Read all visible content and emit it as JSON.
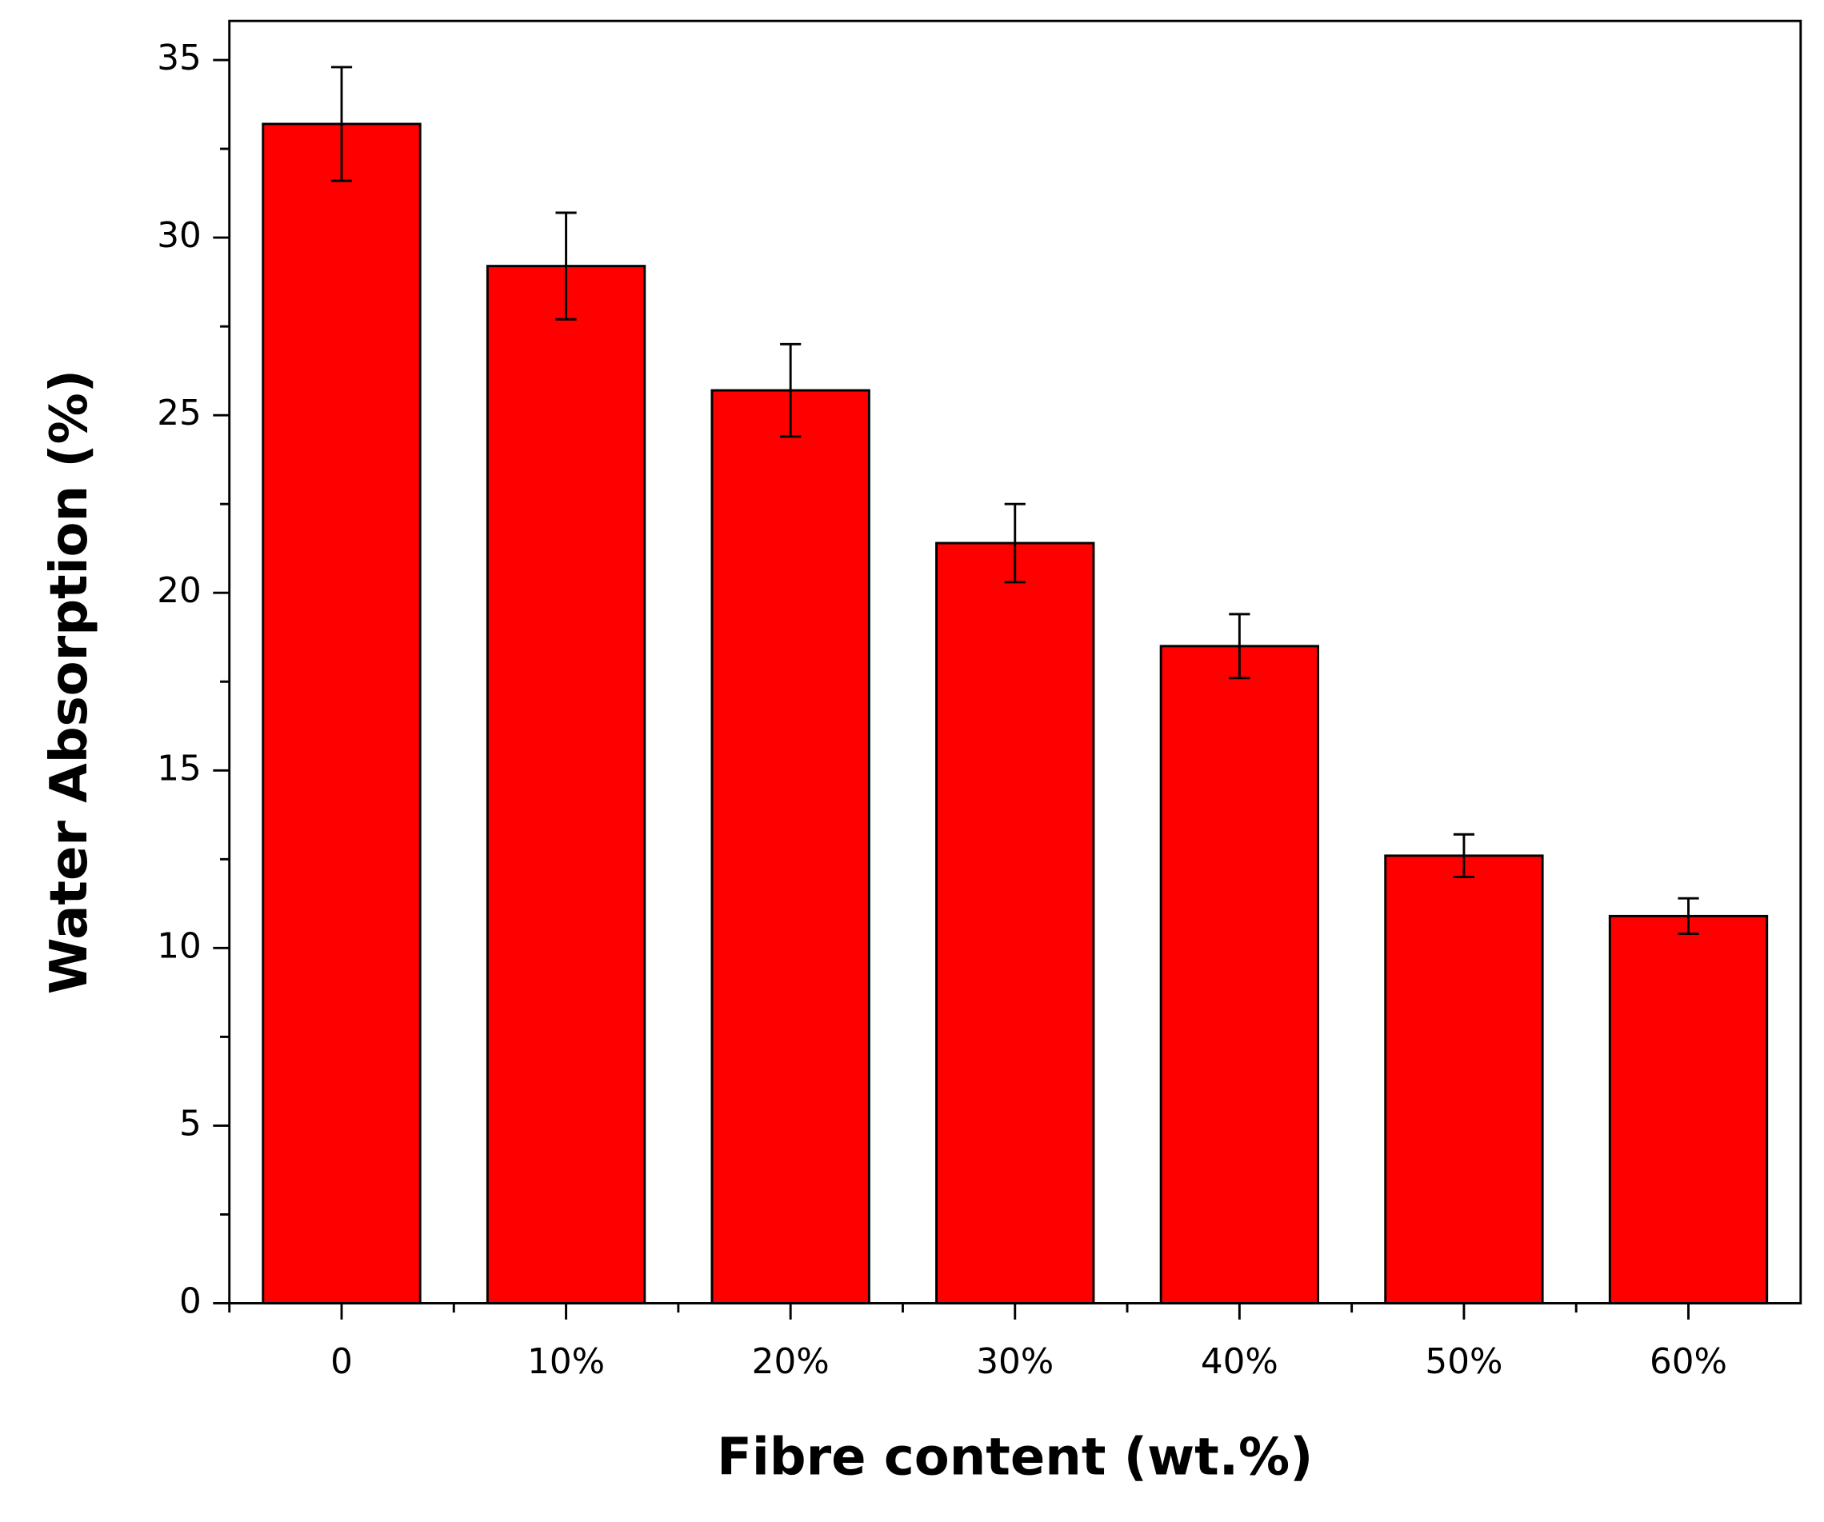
{
  "chart_data": {
    "type": "bar",
    "x_label": "Fibre content (wt.%)",
    "y_label": "Water Absorption (%)",
    "categories": [
      "0",
      "10%",
      "20%",
      "30%",
      "40%",
      "50%",
      "60%"
    ],
    "values": [
      33.2,
      29.2,
      25.7,
      21.4,
      18.5,
      12.6,
      10.9
    ],
    "errors": [
      1.6,
      1.5,
      1.3,
      1.1,
      0.9,
      0.6,
      0.5
    ],
    "color": "#ff0000",
    "ylim": [
      0,
      36.1
    ],
    "yticks": [
      0,
      5,
      10,
      15,
      20,
      25,
      30,
      35
    ],
    "grid": false
  }
}
